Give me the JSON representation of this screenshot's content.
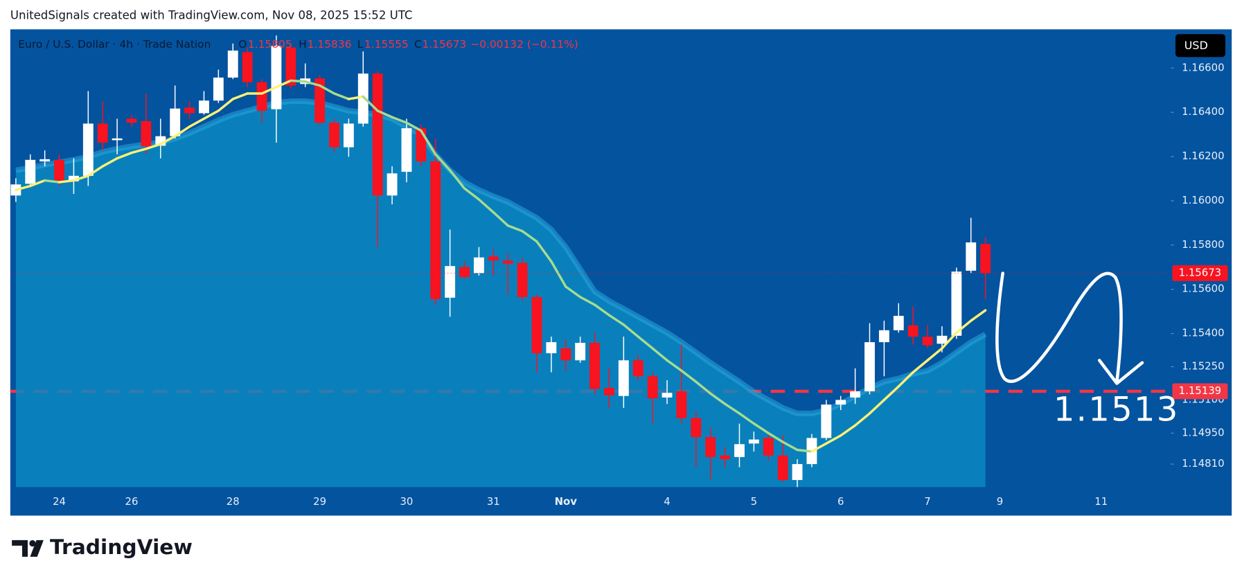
{
  "header": {
    "text": "UnitedSignals created with TradingView.com, Nov 08, 2025 15:52 UTC"
  },
  "chart_data": {
    "type": "candlestick",
    "symbol": "Euro / U.S. Dollar · 4h · Trade Nation",
    "ohlc_legend": [
      {
        "key": "O",
        "value": 1.15805
      },
      {
        "key": "H",
        "value": 1.15836
      },
      {
        "key": "L",
        "value": 1.15555
      },
      {
        "key": "C",
        "value": 1.15673
      }
    ],
    "change": "−0.00132 (−0.11%)",
    "currency": "USD",
    "categories": [
      null,
      null,
      null,
      "24",
      null,
      null,
      null,
      null,
      "26",
      null,
      null,
      null,
      null,
      null,
      null,
      "28",
      null,
      null,
      null,
      null,
      null,
      "29",
      null,
      null,
      null,
      null,
      null,
      "30",
      null,
      null,
      null,
      null,
      null,
      "31",
      null,
      null,
      null,
      null,
      "Nov",
      null,
      null,
      null,
      null,
      null,
      null,
      "4",
      null,
      null,
      null,
      null,
      null,
      "5",
      null,
      null,
      null,
      null,
      null,
      "6",
      null,
      null,
      null,
      null,
      null,
      "7",
      null,
      null,
      null,
      null,
      "9",
      null,
      null,
      null,
      null,
      null,
      null,
      "11",
      null,
      null,
      null,
      null
    ],
    "open": [
      1.16024,
      1.16077,
      1.16178,
      1.16185,
      1.16088,
      1.16113,
      1.16349,
      1.16274,
      1.16371,
      1.1636,
      1.16249,
      1.16292,
      1.16421,
      1.16396,
      1.16453,
      1.16557,
      1.16672,
      1.16536,
      1.16414,
      1.16693,
      1.16528,
      1.16553,
      1.16353,
      1.16242,
      1.16349,
      1.16575,
      1.16024,
      1.16131,
      1.16328,
      1.16178,
      1.15562,
      1.15701,
      1.15673,
      1.15748,
      1.1573,
      1.15719,
      1.15565,
      1.15311,
      1.15333,
      1.15279,
      1.15358,
      1.15154,
      1.15118,
      1.15279,
      1.15207,
      1.15111,
      1.15139,
      1.15018,
      1.14932,
      1.14849,
      1.14842,
      1.14903,
      1.14928,
      1.14849,
      1.14738,
      1.1481,
      1.14928,
      1.15079,
      1.15111,
      1.15139,
      1.15361,
      1.15415,
      1.15437,
      1.15386,
      1.15354,
      1.1539,
      1.15684,
      1.15805,
      null,
      null,
      null,
      null,
      null,
      null,
      null,
      null,
      null,
      null,
      null,
      null
    ],
    "high": [
      1.16102,
      1.1621,
      1.16228,
      1.1621,
      1.16192,
      1.16496,
      1.1645,
      1.16371,
      1.16389,
      1.16485,
      1.16371,
      1.16521,
      1.1645,
      1.16496,
      1.16593,
      1.16711,
      1.16693,
      1.1655,
      1.16747,
      1.16711,
      1.16621,
      1.16568,
      1.16371,
      1.16371,
      1.16675,
      1.16586,
      1.16156,
      1.16371,
      1.16346,
      1.16281,
      1.1587,
      1.15727,
      1.15791,
      1.1578,
      1.15762,
      1.15744,
      1.15576,
      1.15386,
      1.15372,
      1.15386,
      1.15404,
      1.15243,
      1.15386,
      1.15304,
      1.15225,
      1.15189,
      1.1535,
      1.15046,
      1.14975,
      1.14885,
      1.14993,
      1.14957,
      1.14957,
      1.14939,
      1.14832,
      1.14946,
      1.151,
      1.15118,
      1.15243,
      1.15447,
      1.15458,
      1.15537,
      1.15522,
      1.1544,
      1.15433,
      1.15698,
      1.15923,
      1.15836,
      null,
      null,
      null,
      null,
      null,
      null,
      null,
      null,
      null,
      null,
      null,
      null
    ],
    "low": [
      1.15995,
      1.16067,
      1.16156,
      1.16067,
      1.16031,
      1.16067,
      1.16228,
      1.1621,
      1.16335,
      1.1621,
      1.16192,
      1.16281,
      1.16371,
      1.16389,
      1.16442,
      1.1655,
      1.16514,
      1.16353,
      1.16263,
      1.16507,
      1.16514,
      1.16342,
      1.16221,
      1.16199,
      1.16335,
      1.15791,
      1.15984,
      1.16084,
      1.16156,
      1.1553,
      1.15476,
      1.15648,
      1.15662,
      1.15662,
      1.15576,
      1.15548,
      1.15225,
      1.15225,
      1.15232,
      1.15268,
      1.15125,
      1.15064,
      1.15064,
      1.15189,
      1.14993,
      1.15082,
      1.14993,
      1.14796,
      1.14742,
      1.14796,
      1.14796,
      1.14867,
      1.14824,
      1.14731,
      1.14706,
      1.14796,
      1.14918,
      1.15054,
      1.15082,
      1.15125,
      1.15207,
      1.15404,
      1.1535,
      1.15333,
      1.15315,
      1.15376,
      1.15673,
      1.15555,
      null,
      null,
      null,
      null,
      null,
      null,
      null,
      null,
      null,
      null,
      null,
      null
    ],
    "close": [
      1.16074,
      1.16185,
      1.16188,
      1.16092,
      1.16113,
      1.16349,
      1.16263,
      1.16282,
      1.16353,
      1.16246,
      1.16292,
      1.16417,
      1.16396,
      1.16453,
      1.16557,
      1.16679,
      1.16536,
      1.16407,
      1.167,
      1.16521,
      1.16553,
      1.16353,
      1.16242,
      1.16349,
      1.16575,
      1.16024,
      1.16124,
      1.16328,
      1.16178,
      1.15555,
      1.15705,
      1.15655,
      1.15744,
      1.1573,
      1.15716,
      1.15565,
      1.15311,
      1.15361,
      1.15279,
      1.15358,
      1.1515,
      1.15121,
      1.15279,
      1.15207,
      1.15107,
      1.15132,
      1.15018,
      1.14932,
      1.14842,
      1.14832,
      1.149,
      1.14921,
      1.14849,
      1.14738,
      1.1481,
      1.14928,
      1.15079,
      1.151,
      1.15139,
      1.15361,
      1.15415,
      1.1548,
      1.15386,
      1.15347,
      1.1539,
      1.1568,
      1.15812,
      1.15673,
      null,
      null,
      null,
      null,
      null,
      null,
      null,
      null,
      null,
      null,
      null,
      null
    ],
    "up_color": "#ffffff",
    "down_color": "#f7131f",
    "lines": [
      {
        "kind": "area",
        "color": "#0b8ac2",
        "edge_color": "#2aa6da",
        "values": [
          1.16138,
          1.16149,
          1.16163,
          1.16174,
          1.16185,
          1.16199,
          1.16221,
          1.16235,
          1.16246,
          1.16256,
          1.16264,
          1.16281,
          1.16306,
          1.16335,
          1.16364,
          1.16389,
          1.16407,
          1.16425,
          1.16443,
          1.1645,
          1.1645,
          1.16443,
          1.16425,
          1.16407,
          1.164,
          1.16389,
          1.16371,
          1.16335,
          1.16299,
          1.1621,
          1.16138,
          1.16084,
          1.16049,
          1.1602,
          1.15995,
          1.15959,
          1.15923,
          1.1587,
          1.15791,
          1.15691,
          1.1559,
          1.15547,
          1.15512,
          1.15476,
          1.1544,
          1.15404,
          1.15361,
          1.15315,
          1.15268,
          1.15225,
          1.15182,
          1.15136,
          1.151,
          1.15064,
          1.15039,
          1.15039,
          1.15053,
          1.15082,
          1.15118,
          1.15154,
          1.15182,
          1.15197,
          1.15218,
          1.15232,
          1.15268,
          1.15315,
          1.15361,
          1.15397,
          null,
          null,
          null,
          null,
          null,
          null,
          null,
          null,
          null,
          null,
          null,
          null
        ]
      },
      {
        "kind": "line",
        "up_color": "#fff176",
        "down_color": "#a5dc8f",
        "values": [
          1.16049,
          1.16067,
          1.16092,
          1.16084,
          1.16092,
          1.16113,
          1.16156,
          1.16192,
          1.16217,
          1.16235,
          1.16256,
          1.16292,
          1.16335,
          1.16371,
          1.16407,
          1.1646,
          1.16485,
          1.16485,
          1.16514,
          1.16543,
          1.16539,
          1.16521,
          1.16485,
          1.1646,
          1.16471,
          1.16407,
          1.16378,
          1.16353,
          1.16317,
          1.1621,
          1.16138,
          1.16056,
          1.16006,
          1.15948,
          1.15888,
          1.15863,
          1.15816,
          1.15726,
          1.15612,
          1.15565,
          1.1553,
          1.15483,
          1.1544,
          1.15386,
          1.15333,
          1.15279,
          1.15232,
          1.15182,
          1.15129,
          1.15082,
          1.15039,
          1.14993,
          1.1495,
          1.1491,
          1.14874,
          1.14867,
          1.14903,
          1.14939,
          1.14985,
          1.15039,
          1.151,
          1.15161,
          1.15225,
          1.15279,
          1.15333,
          1.15404,
          1.15458,
          1.15505,
          null,
          null,
          null,
          null,
          null,
          null,
          null,
          null,
          null,
          null,
          null,
          null
        ]
      }
    ],
    "ylim": [
      1.14706,
      1.16775
    ],
    "yticks": [
      {
        "value": 1.166,
        "label": "1.16600"
      },
      {
        "value": 1.164,
        "label": "1.16400"
      },
      {
        "value": 1.162,
        "label": "1.16200"
      },
      {
        "value": 1.16,
        "label": "1.16000"
      },
      {
        "value": 1.158,
        "label": "1.15800"
      },
      {
        "value": 1.156,
        "label": "1.15600"
      },
      {
        "value": 1.154,
        "label": "1.15400"
      },
      {
        "value": 1.1525,
        "label": "1.15250"
      },
      {
        "value": 1.151,
        "label": "1.15100"
      },
      {
        "value": 1.1495,
        "label": "1.14950"
      },
      {
        "value": 1.1481,
        "label": "1.14810"
      }
    ],
    "last_price": 1.15673,
    "level": {
      "value": 1.15139,
      "color": "#f23645"
    },
    "annotation": "1.1513",
    "background": "#03539f"
  },
  "footer": {
    "logo": "TradingView"
  }
}
